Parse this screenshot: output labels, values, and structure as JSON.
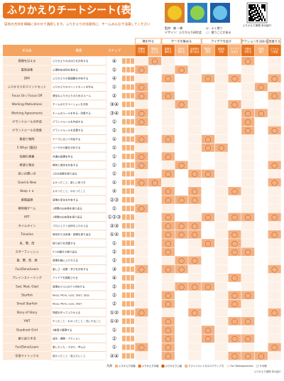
{
  "header": {
    "title": "ふりかえりチートシート(表)",
    "subtitle": "目的の方向を明確にあわせて選択します。ふりかえりの効果的に、チームみんなで活用してください",
    "credit1": "監修：森 一樹",
    "credit2": "デザイン：ふりかえり研究会",
    "note1": "◎：よく使う",
    "note2": "○：使うことがある",
    "qr_caption": "ふりかえり実践 本の紹介"
  },
  "table": {
    "left_headers": [
      "手法名",
      "概要",
      "ステップ"
    ],
    "groups": [
      "場を作る",
      "データを集める",
      "アイデアを出す",
      "アクションを決める",
      "改善する"
    ],
    "columns": [
      "雰囲気を作る",
      "感謝を伝える",
      "事実を集める",
      "感情を集める",
      "出来事を振り返る",
      "問題を発見",
      "原因を分析",
      "アイデアを出す",
      "行動を決める",
      "行動を実行",
      "ふりかえり改善"
    ],
    "rows": [
      {
        "name": "感謝を伝える",
        "desc": "ふりかえりの大切さを共有する",
        "step": "④",
        "cells": [
          null,
          "◯",
          null,
          null,
          null,
          null,
          null,
          null,
          "◯",
          null,
          null
        ]
      },
      {
        "name": "喜怒哀楽",
        "desc": "心理的安全性を高める",
        "step": "①",
        "cells": [
          "◯",
          null,
          null,
          "◯",
          null,
          null,
          null,
          null,
          null,
          null,
          null
        ]
      },
      {
        "name": "DPA",
        "desc": "ふりかえりの価値観を共有する",
        "step": "④",
        "cells": [
          null,
          null,
          "◯",
          null,
          null,
          "◯",
          null,
          "◯",
          null,
          null,
          "◯"
        ]
      },
      {
        "name": "ふりかえりのマインドセット",
        "desc": "ふりかえりのマインドセットを作る",
        "step": "①",
        "cells": [
          "◯",
          null,
          null,
          null,
          null,
          null,
          null,
          null,
          null,
          "◯",
          null
        ]
      },
      {
        "name": "Focus On / Focus Off",
        "desc": "健全なふりかえりのためのルール",
        "step": "②",
        "cells": [
          "◯",
          null,
          "◯",
          null,
          null,
          null,
          null,
          null,
          null,
          null,
          "◯"
        ]
      },
      {
        "name": "Working Motivations",
        "desc": "チームのモチベーションを共有",
        "step": "③④",
        "cells": [
          null,
          null,
          null,
          "◯",
          null,
          null,
          null,
          "◯",
          null,
          null,
          null
        ]
      },
      {
        "name": "Working Agreements",
        "desc": "チームのルールを作る・改善する",
        "step": "③④",
        "cells": [
          "◯",
          null,
          null,
          null,
          null,
          null,
          null,
          null,
          "◯",
          "◯",
          null
        ]
      },
      {
        "name": "グランドルールの作成",
        "desc": "グランドルールを作成する",
        "step": "①",
        "cells": [
          "◯",
          null,
          null,
          null,
          null,
          null,
          null,
          null,
          "◯",
          null,
          null
        ]
      },
      {
        "name": "グランドルールの改善",
        "desc": "グランドルールを改善する",
        "step": "②",
        "cells": [
          null,
          null,
          null,
          null,
          null,
          null,
          null,
          null,
          "◯",
          null,
          "◯"
        ]
      },
      {
        "name": "象限で質問",
        "desc": "テーマに沿って対話する",
        "step": "①",
        "cells": [
          "◯",
          null,
          "◯",
          null,
          null,
          "◯",
          null,
          null,
          null,
          null,
          null
        ]
      },
      {
        "name": "5 Whys (要因)",
        "desc": "リーダの行動を分析する",
        "step": "①",
        "cells": [
          null,
          null,
          null,
          null,
          null,
          "◯",
          "◯",
          null,
          null,
          null,
          null
        ]
      },
      {
        "name": "信頼の意義",
        "desc": "共通の認識を作る",
        "step": "①",
        "cells": [
          "◯",
          null,
          "◯",
          null,
          null,
          null,
          null,
          null,
          null,
          null,
          null
        ]
      },
      {
        "name": "希望と懸念",
        "desc": "期待と懸念を共有する",
        "step": "①",
        "cells": [
          "◯",
          null,
          null,
          "◯",
          null,
          null,
          null,
          null,
          null,
          null,
          "◯"
        ]
      },
      {
        "name": "良い点悪い点",
        "desc": "1日の成果を振り返る",
        "step": "①",
        "cells": [
          null,
          null,
          "◯",
          null,
          "◯",
          "◯",
          null,
          null,
          null,
          null,
          null
        ]
      },
      {
        "name": "Good & New",
        "desc": "よかったこと、新しい気づき",
        "step": "①",
        "cells": [
          "◯",
          "◯",
          null,
          null,
          null,
          null,
          null,
          null,
          null,
          null,
          "◯"
        ]
      },
      {
        "name": "Keep + α",
        "desc": "よかったこと、わかったこと",
        "step": "②",
        "cells": [
          null,
          null,
          "◯",
          null,
          "◯",
          null,
          null,
          "◯",
          null,
          null,
          null
        ]
      },
      {
        "name": "感情曲線",
        "desc": "感情の変化を共有する",
        "step": "②③",
        "cells": [
          null,
          null,
          "◯",
          "◯",
          "◯",
          null,
          null,
          null,
          null,
          null,
          null
        ]
      },
      {
        "name": "期待値ゲーム",
        "desc": "1週間の出来事を振り返る",
        "step": "①",
        "cells": [
          "◯",
          null,
          null,
          null,
          null,
          null,
          null,
          null,
          null,
          null,
          null
        ]
      },
      {
        "name": "KPT",
        "desc": "1週間の出来事を振り返る",
        "step": "①②③",
        "cells": [
          null,
          null,
          "◯",
          null,
          null,
          "◯",
          null,
          "◯",
          "◯",
          null,
          "◯"
        ]
      },
      {
        "name": "タイムライン",
        "desc": "プロジェクト全体をふりかえる",
        "step": "②③",
        "cells": [
          null,
          null,
          "◯",
          "◯",
          "◯",
          null,
          null,
          null,
          null,
          null,
          null
        ]
      },
      {
        "name": "Timeline",
        "desc": "時系列で出来事・感情を振り返る",
        "step": "①②",
        "cells": [
          null,
          null,
          "◯",
          "◯",
          "◯",
          null,
          null,
          "◯",
          null,
          null,
          "◯"
        ]
      },
      {
        "name": "良、悪、改",
        "desc": "振り返りを改善する",
        "step": "①",
        "cells": [
          null,
          null,
          "◯",
          null,
          null,
          "◯",
          null,
          "◯",
          null,
          null,
          null
        ]
      },
      {
        "name": "スターフィッシュ",
        "desc": "5つの観点で振り返る",
        "step": "②",
        "cells": [
          null,
          null,
          "◯",
          null,
          null,
          null,
          null,
          "◯",
          "◯",
          null,
          null
        ]
      },
      {
        "name": "喜、驚、悲、楽",
        "desc": "感情を軸にふりかえる",
        "step": "②",
        "cells": [
          null,
          null,
          null,
          "◯",
          "◯",
          null,
          null,
          null,
          null,
          null,
          null
        ]
      },
      {
        "name": "Fun/Done/Learn",
        "desc": "楽しさ・成果・学びを共有する",
        "step": "③",
        "cells": [
          "◯",
          null,
          "◯",
          "◯",
          null,
          null,
          null,
          null,
          null,
          null,
          "◯"
        ]
      },
      {
        "name": "プレインストーミング",
        "desc": "アイデアを発散させる",
        "step": "④",
        "cells": [
          null,
          null,
          null,
          null,
          null,
          null,
          null,
          "◯",
          null,
          null,
          null
        ]
      },
      {
        "name": "Sad, Mad, Glad",
        "desc": "感情を3つに分けて共有する",
        "step": "②",
        "cells": [
          null,
          null,
          null,
          "◯",
          "◯",
          "◯",
          null,
          null,
          null,
          null,
          null
        ]
      },
      {
        "name": "Starfish",
        "desc": "Keep, More, Less, Start, Stop",
        "step": "②",
        "cells": [
          null,
          null,
          "◯",
          null,
          null,
          null,
          null,
          "◯",
          "◯",
          null,
          null
        ]
      },
      {
        "name": "Small Starfish",
        "desc": "Keep, More, Less, Start",
        "step": "②",
        "cells": [
          null,
          null,
          "◯",
          null,
          null,
          null,
          null,
          "◯",
          null,
          null,
          null
        ]
      },
      {
        "name": "Story of Story",
        "desc": "物語を作ってふりかえる",
        "step": "①②",
        "cells": [
          "◯",
          null,
          null,
          null,
          "◯",
          null,
          null,
          null,
          null,
          null,
          "◯"
        ]
      },
      {
        "name": "YWT",
        "desc": "やったこと・わかったこと・次にやること",
        "step": "①②",
        "cells": [
          null,
          null,
          "◯",
          null,
          null,
          null,
          null,
          "◯",
          "◯",
          null,
          null
        ]
      },
      {
        "name": "Quadrant Grid",
        "desc": "4象限で整理する",
        "step": "①",
        "cells": [
          null,
          null,
          "◯",
          null,
          null,
          "◯",
          null,
          null,
          null,
          null,
          null
        ]
      },
      {
        "name": "振り返り手法",
        "desc": "成功・課題・アクション",
        "step": "②",
        "cells": [
          null,
          null,
          "◯",
          null,
          null,
          "◯",
          null,
          "◯",
          "◯",
          null,
          null
        ]
      },
      {
        "name": "Fun/Done/Learn",
        "desc": "楽しかった・できた・学んだ",
        "step": "①",
        "cells": [
          "◯",
          null,
          "◯",
          null,
          null,
          null,
          null,
          null,
          null,
          null,
          "◯"
        ]
      },
      {
        "name": "学習マトリックス",
        "desc": "良かったこと・変えたいこと",
        "step": "②④",
        "cells": [
          null,
          null,
          "◯",
          null,
          null,
          null,
          null,
          "◯",
          "◯",
          "◯",
          null
        ]
      }
    ]
  },
  "legend": {
    "label": "凡例",
    "items": [
      "ふりかえり初級",
      "ふりかえり中級",
      "ふりかえり上級",
      "アジャイルレトロスペクティブズ",
      "Fun Retrospectives",
      "その他"
    ],
    "footer": "ふりかえり実践 本の紹介"
  }
}
